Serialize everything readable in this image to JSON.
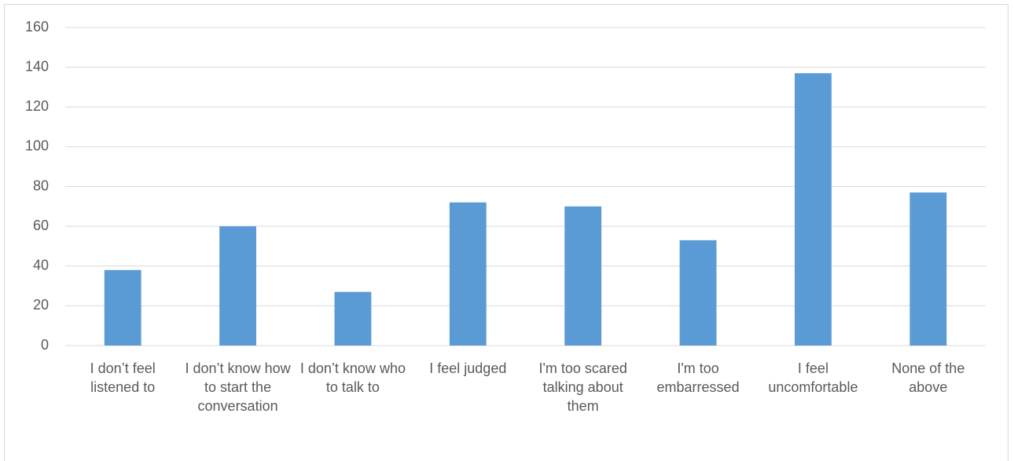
{
  "chart_data": {
    "type": "bar",
    "categories": [
      "I don’t feel listened to",
      "I don’t know how to start the conversation",
      "I don’t know who to talk to",
      "I feel judged",
      "I'm too scared talking about them",
      "I'm too embarressed",
      "I feel uncomfortable",
      "None of the above"
    ],
    "values": [
      38,
      60,
      27,
      72,
      70,
      53,
      137,
      77
    ],
    "color": "#5b9bd5",
    "ylim": [
      0,
      160
    ],
    "yticks": [
      0,
      20,
      40,
      60,
      80,
      100,
      120,
      140,
      160
    ],
    "grid": true
  }
}
